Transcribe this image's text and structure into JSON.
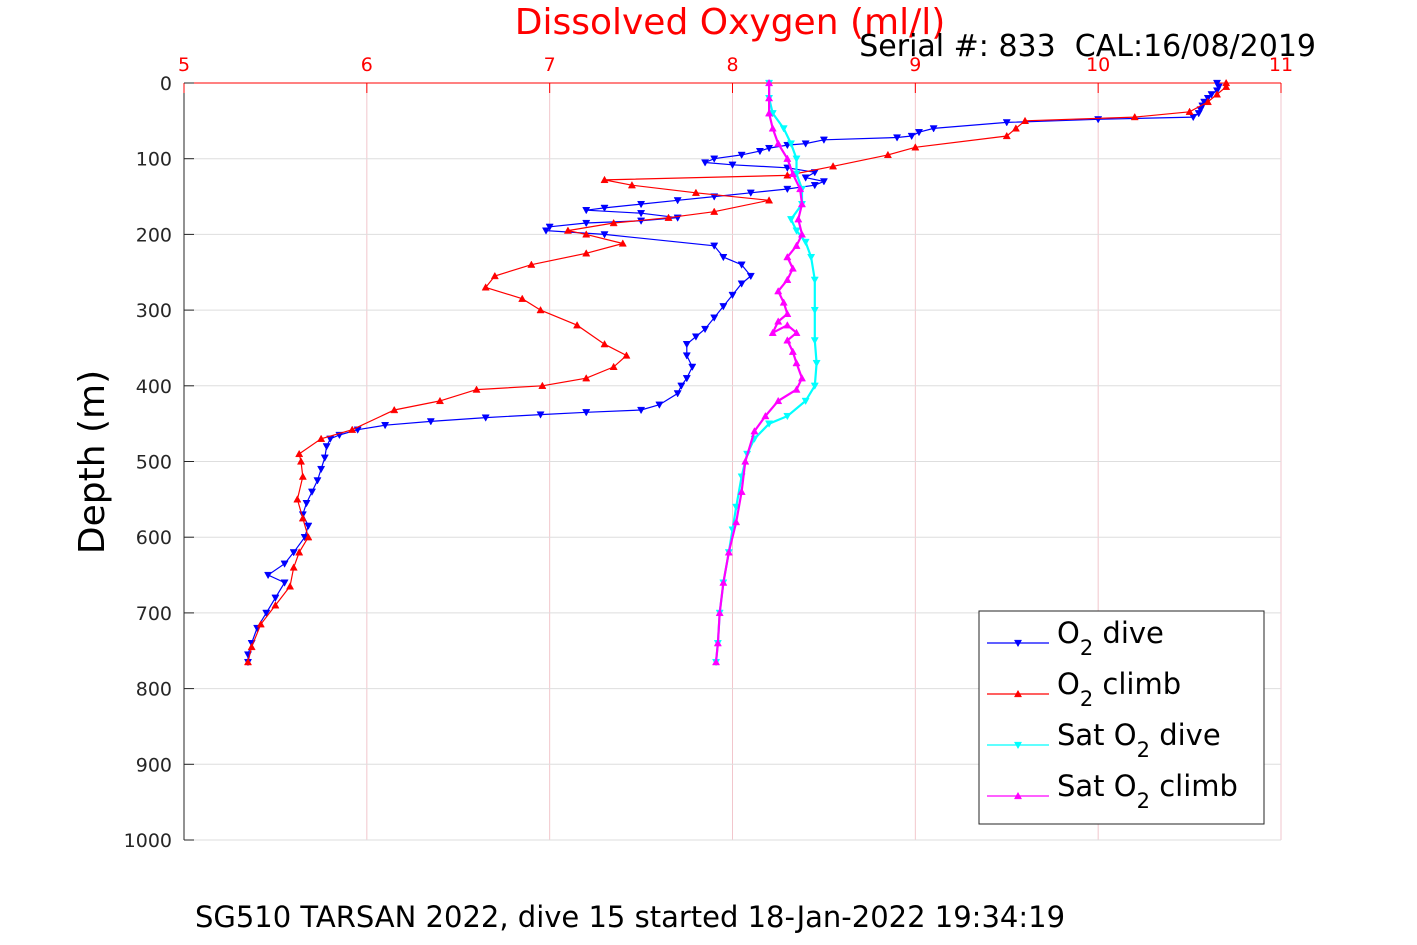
{
  "chart_data": {
    "type": "scatter",
    "title": "Dissolved Oxygen (ml/l)",
    "serial_label": "Serial #: 833  CAL:16/08/2019",
    "footer": "SG510 TARSAN 2022, dive 15 started 18-Jan-2022 19:34:19",
    "ylabel": "Depth (m)",
    "x_axis_position": "top",
    "y_axis_reversed": true,
    "xlim": [
      5,
      11
    ],
    "ylim": [
      0,
      1000
    ],
    "x_ticks": [
      "5",
      "6",
      "7",
      "8",
      "9",
      "10",
      "11"
    ],
    "y_ticks": [
      "0",
      "100",
      "200",
      "300",
      "400",
      "500",
      "600",
      "700",
      "800",
      "900",
      "1000"
    ],
    "grid": true,
    "legend_position": "bottom-right",
    "colors": {
      "title": "#ff0000",
      "x_ticks": "#ff0000",
      "grid": "#f2c6cc",
      "o2_dive": "#0000ff",
      "o2_climb": "#ff0000",
      "sat_dive": "#00ffff",
      "sat_climb": "#ff00ff"
    },
    "series": [
      {
        "key": "o2_dive",
        "legend_main": "O",
        "legend_sub": "2",
        "legend_rest": " dive",
        "color": "#0000ff",
        "marker": "down",
        "points": [
          [
            10.65,
            0
          ],
          [
            10.66,
            5
          ],
          [
            10.65,
            10
          ],
          [
            10.62,
            15
          ],
          [
            10.6,
            20
          ],
          [
            10.58,
            25
          ],
          [
            10.57,
            30
          ],
          [
            10.56,
            35
          ],
          [
            10.55,
            40
          ],
          [
            10.52,
            45
          ],
          [
            10.0,
            48
          ],
          [
            9.5,
            52
          ],
          [
            9.1,
            60
          ],
          [
            9.02,
            65
          ],
          [
            8.98,
            70
          ],
          [
            8.9,
            72
          ],
          [
            8.5,
            75
          ],
          [
            8.4,
            80
          ],
          [
            8.3,
            82
          ],
          [
            8.2,
            86
          ],
          [
            8.15,
            90
          ],
          [
            8.05,
            95
          ],
          [
            7.9,
            100
          ],
          [
            7.85,
            105
          ],
          [
            8.0,
            108
          ],
          [
            8.3,
            112
          ],
          [
            8.45,
            118
          ],
          [
            8.4,
            125
          ],
          [
            8.5,
            130
          ],
          [
            8.45,
            135
          ],
          [
            8.3,
            140
          ],
          [
            8.1,
            145
          ],
          [
            7.9,
            150
          ],
          [
            7.7,
            155
          ],
          [
            7.5,
            160
          ],
          [
            7.3,
            165
          ],
          [
            7.2,
            168
          ],
          [
            7.5,
            172
          ],
          [
            7.7,
            178
          ],
          [
            7.5,
            182
          ],
          [
            7.2,
            185
          ],
          [
            7.0,
            190
          ],
          [
            6.98,
            195
          ],
          [
            7.3,
            200
          ],
          [
            7.9,
            215
          ],
          [
            7.95,
            230
          ],
          [
            8.05,
            240
          ],
          [
            8.1,
            255
          ],
          [
            8.05,
            265
          ],
          [
            8.0,
            280
          ],
          [
            7.95,
            295
          ],
          [
            7.9,
            310
          ],
          [
            7.85,
            325
          ],
          [
            7.8,
            335
          ],
          [
            7.75,
            345
          ],
          [
            7.75,
            360
          ],
          [
            7.78,
            375
          ],
          [
            7.75,
            390
          ],
          [
            7.72,
            400
          ],
          [
            7.7,
            410
          ],
          [
            7.6,
            425
          ],
          [
            7.5,
            432
          ],
          [
            7.2,
            435
          ],
          [
            6.95,
            438
          ],
          [
            6.65,
            442
          ],
          [
            6.35,
            447
          ],
          [
            6.1,
            452
          ],
          [
            5.95,
            458
          ],
          [
            5.85,
            465
          ],
          [
            5.8,
            470
          ],
          [
            5.78,
            480
          ],
          [
            5.77,
            495
          ],
          [
            5.75,
            510
          ],
          [
            5.73,
            525
          ],
          [
            5.7,
            540
          ],
          [
            5.67,
            555
          ],
          [
            5.65,
            570
          ],
          [
            5.68,
            585
          ],
          [
            5.66,
            600
          ],
          [
            5.6,
            620
          ],
          [
            5.55,
            635
          ],
          [
            5.46,
            650
          ],
          [
            5.55,
            660
          ],
          [
            5.5,
            680
          ],
          [
            5.45,
            700
          ],
          [
            5.4,
            720
          ],
          [
            5.37,
            740
          ],
          [
            5.35,
            755
          ],
          [
            5.35,
            765
          ]
        ]
      },
      {
        "key": "o2_climb",
        "legend_main": "O",
        "legend_sub": "2",
        "legend_rest": " climb",
        "color": "#ff0000",
        "marker": "up",
        "points": [
          [
            5.35,
            765
          ],
          [
            5.37,
            745
          ],
          [
            5.42,
            715
          ],
          [
            5.5,
            690
          ],
          [
            5.58,
            665
          ],
          [
            5.6,
            640
          ],
          [
            5.63,
            620
          ],
          [
            5.68,
            600
          ],
          [
            5.65,
            575
          ],
          [
            5.62,
            550
          ],
          [
            5.65,
            520
          ],
          [
            5.64,
            500
          ],
          [
            5.63,
            490
          ],
          [
            5.75,
            470
          ],
          [
            5.92,
            458
          ],
          [
            6.15,
            432
          ],
          [
            6.4,
            420
          ],
          [
            6.6,
            405
          ],
          [
            6.96,
            400
          ],
          [
            7.2,
            390
          ],
          [
            7.35,
            375
          ],
          [
            7.42,
            360
          ],
          [
            7.3,
            345
          ],
          [
            7.15,
            320
          ],
          [
            6.95,
            300
          ],
          [
            6.85,
            285
          ],
          [
            6.65,
            270
          ],
          [
            6.7,
            255
          ],
          [
            6.9,
            240
          ],
          [
            7.2,
            225
          ],
          [
            7.4,
            212
          ],
          [
            7.2,
            200
          ],
          [
            7.1,
            195
          ],
          [
            7.35,
            185
          ],
          [
            7.65,
            178
          ],
          [
            7.9,
            170
          ],
          [
            8.2,
            155
          ],
          [
            7.8,
            145
          ],
          [
            7.45,
            135
          ],
          [
            7.3,
            128
          ],
          [
            8.3,
            122
          ],
          [
            8.55,
            110
          ],
          [
            8.85,
            95
          ],
          [
            9.0,
            85
          ],
          [
            9.5,
            70
          ],
          [
            9.55,
            60
          ],
          [
            9.6,
            50
          ],
          [
            10.2,
            45
          ],
          [
            10.5,
            38
          ],
          [
            10.6,
            25
          ],
          [
            10.65,
            15
          ],
          [
            10.7,
            5
          ],
          [
            10.7,
            0
          ]
        ]
      },
      {
        "key": "sat_dive",
        "legend_main": "Sat O",
        "legend_sub": "2",
        "legend_rest": " dive",
        "color": "#00ffff",
        "marker": "down",
        "points": [
          [
            8.2,
            0
          ],
          [
            8.2,
            20
          ],
          [
            8.22,
            40
          ],
          [
            8.28,
            60
          ],
          [
            8.32,
            80
          ],
          [
            8.35,
            100
          ],
          [
            8.35,
            120
          ],
          [
            8.38,
            140
          ],
          [
            8.38,
            160
          ],
          [
            8.32,
            180
          ],
          [
            8.35,
            195
          ],
          [
            8.4,
            210
          ],
          [
            8.43,
            230
          ],
          [
            8.45,
            260
          ],
          [
            8.45,
            300
          ],
          [
            8.45,
            340
          ],
          [
            8.46,
            370
          ],
          [
            8.45,
            400
          ],
          [
            8.4,
            420
          ],
          [
            8.3,
            440
          ],
          [
            8.2,
            450
          ],
          [
            8.12,
            470
          ],
          [
            8.08,
            490
          ],
          [
            8.05,
            520
          ],
          [
            8.02,
            560
          ],
          [
            8.0,
            590
          ],
          [
            7.98,
            620
          ],
          [
            7.95,
            660
          ],
          [
            7.93,
            700
          ],
          [
            7.92,
            740
          ],
          [
            7.91,
            765
          ]
        ]
      },
      {
        "key": "sat_climb",
        "legend_main": "Sat O",
        "legend_sub": "2",
        "legend_rest": " climb",
        "color": "#ff00ff",
        "marker": "up",
        "points": [
          [
            7.91,
            765
          ],
          [
            7.92,
            740
          ],
          [
            7.93,
            700
          ],
          [
            7.95,
            660
          ],
          [
            7.98,
            620
          ],
          [
            8.02,
            580
          ],
          [
            8.05,
            540
          ],
          [
            8.07,
            500
          ],
          [
            8.12,
            460
          ],
          [
            8.18,
            440
          ],
          [
            8.25,
            420
          ],
          [
            8.35,
            405
          ],
          [
            8.38,
            390
          ],
          [
            8.35,
            370
          ],
          [
            8.33,
            355
          ],
          [
            8.3,
            340
          ],
          [
            8.35,
            330
          ],
          [
            8.3,
            320
          ],
          [
            8.22,
            330
          ],
          [
            8.25,
            315
          ],
          [
            8.3,
            305
          ],
          [
            8.28,
            290
          ],
          [
            8.25,
            275
          ],
          [
            8.3,
            260
          ],
          [
            8.33,
            245
          ],
          [
            8.3,
            230
          ],
          [
            8.35,
            215
          ],
          [
            8.38,
            200
          ],
          [
            8.36,
            180
          ],
          [
            8.38,
            160
          ],
          [
            8.37,
            140
          ],
          [
            8.33,
            120
          ],
          [
            8.3,
            100
          ],
          [
            8.25,
            80
          ],
          [
            8.22,
            60
          ],
          [
            8.2,
            40
          ],
          [
            8.2,
            20
          ],
          [
            8.2,
            0
          ]
        ]
      }
    ]
  }
}
